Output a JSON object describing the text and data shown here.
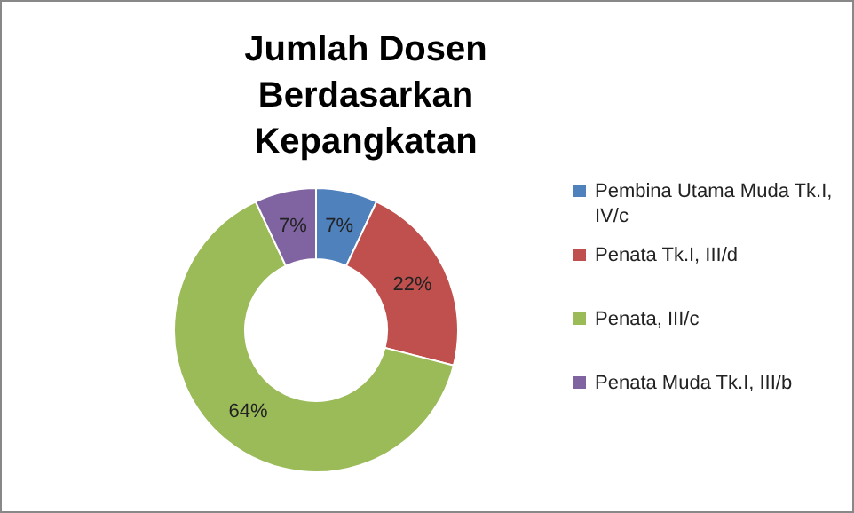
{
  "chart_data": {
    "type": "donut",
    "title": "Jumlah Dosen Berdasarkan Kepangkatan",
    "categories": [
      "Pembina Utama Muda Tk.I, IV/c",
      "Penata Tk.I, III/d",
      "Penata, III/c",
      "Penata Muda Tk.I, III/b"
    ],
    "values": [
      7,
      22,
      64,
      7
    ],
    "value_labels": [
      "7%",
      "22%",
      "64%",
      "7%"
    ],
    "colors": [
      "#4f81bd",
      "#c0504d",
      "#9bbb59",
      "#8064a2"
    ],
    "legend": "right"
  }
}
